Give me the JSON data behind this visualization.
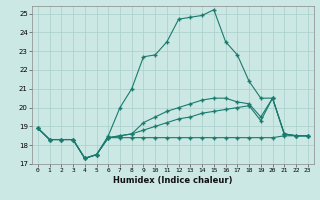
{
  "xlabel": "Humidex (Indice chaleur)",
  "bg_color": "#cce8e4",
  "grid_color": "#aacfcb",
  "line_color": "#1a7a6e",
  "xlim": [
    -0.5,
    23.5
  ],
  "ylim": [
    17,
    25.4
  ],
  "yticks": [
    17,
    18,
    19,
    20,
    21,
    22,
    23,
    24,
    25
  ],
  "xticks": [
    0,
    1,
    2,
    3,
    4,
    5,
    6,
    7,
    8,
    9,
    10,
    11,
    12,
    13,
    14,
    15,
    16,
    17,
    18,
    19,
    20,
    21,
    22,
    23
  ],
  "s1_y": [
    18.9,
    18.3,
    18.3,
    18.3,
    17.3,
    17.5,
    18.4,
    18.4,
    18.4,
    18.4,
    18.4,
    18.4,
    18.4,
    18.4,
    18.4,
    18.4,
    18.4,
    18.4,
    18.4,
    18.4,
    18.4,
    18.5,
    18.5,
    18.5
  ],
  "s2_y": [
    18.9,
    18.3,
    18.3,
    18.3,
    17.3,
    17.5,
    18.4,
    18.5,
    18.6,
    18.8,
    19.0,
    19.2,
    19.4,
    19.5,
    19.7,
    19.8,
    19.9,
    20.0,
    20.1,
    19.3,
    20.5,
    18.6,
    18.5,
    18.5
  ],
  "s3_y": [
    18.9,
    18.3,
    18.3,
    18.3,
    17.3,
    17.5,
    18.4,
    18.5,
    18.6,
    19.2,
    19.5,
    19.8,
    20.0,
    20.2,
    20.4,
    20.5,
    20.5,
    20.3,
    20.2,
    19.5,
    20.5,
    18.6,
    18.5,
    18.5
  ],
  "s4_y": [
    18.9,
    18.3,
    18.3,
    18.3,
    17.3,
    17.5,
    18.5,
    20.0,
    21.0,
    22.7,
    22.8,
    23.5,
    24.7,
    24.8,
    24.9,
    25.2,
    23.5,
    22.8,
    21.4,
    20.5,
    20.5,
    18.6,
    18.5,
    18.5
  ]
}
